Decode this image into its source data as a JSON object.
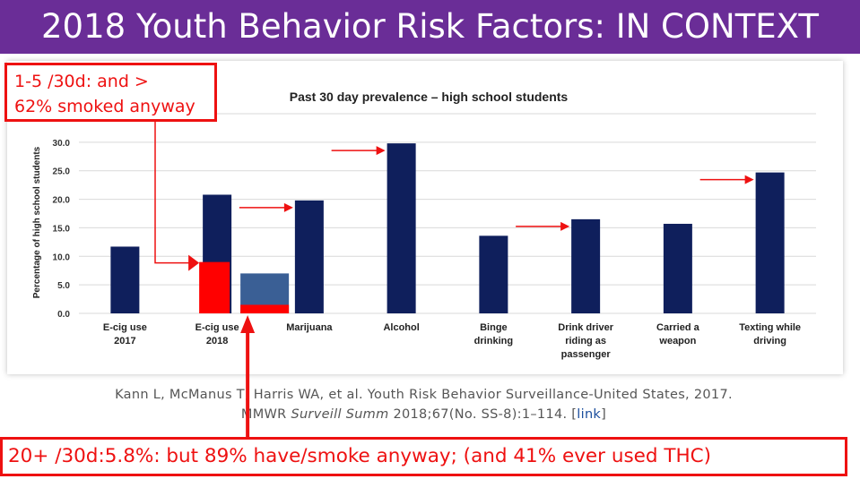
{
  "slide": {
    "title": "2018 Youth Behavior Risk Factors: IN CONTEXT"
  },
  "colors": {
    "title_bg": "#6a2d97",
    "bar": "#0f1f5c",
    "overlay_red": "#ff0000",
    "overlay_blue": "#3a5f95",
    "callout": "#e11111"
  },
  "chart_data": {
    "type": "bar",
    "title": "Past 30 day prevalence – high school students",
    "ylabel": "Percentage of high school students",
    "ylim": [
      0,
      35
    ],
    "yticks": [
      "0.0",
      "5.0",
      "10.0",
      "15.0",
      "20.0",
      "25.0",
      "30.0",
      "35.0"
    ],
    "grid": true,
    "categories": [
      [
        "E-cig use",
        "2017"
      ],
      [
        "E-cig use",
        "2018"
      ],
      [
        "Marijuana"
      ],
      [
        "Alcohol"
      ],
      [
        "Binge",
        "drinking"
      ],
      [
        "Drink driver",
        "riding as",
        "passenger"
      ],
      [
        "Carried a",
        "weapon"
      ],
      [
        "Texting while",
        "driving"
      ]
    ],
    "values": [
      11.7,
      20.8,
      19.8,
      29.8,
      13.6,
      16.5,
      15.7,
      24.7
    ],
    "overlays": [
      {
        "category_index": 1,
        "value": 9.0,
        "color": "red"
      },
      {
        "category_index": 1,
        "value": 7.0,
        "color": "blue",
        "inner_red_value": 1.5
      }
    ],
    "arrow_targets": [
      2,
      3,
      5,
      7
    ]
  },
  "callouts": {
    "top_line1": "1-5 /30d:  and >",
    "top_line2": "62% smoked anyway",
    "bottom": "20+ /30d:5.8%: but 89% have/smoke anyway; (and 41% ever used THC)"
  },
  "citation": {
    "line1": "Kann L, McManus T, Harris WA, et al. Youth Risk Behavior Surveillance-United States, 2017.",
    "line2_a": "MMWR ",
    "line2_italic": "Surveill Summ",
    "line2_b": " 2018;67(No. SS-8):1–114. [",
    "line2_link": "link",
    "line2_c": "]"
  }
}
